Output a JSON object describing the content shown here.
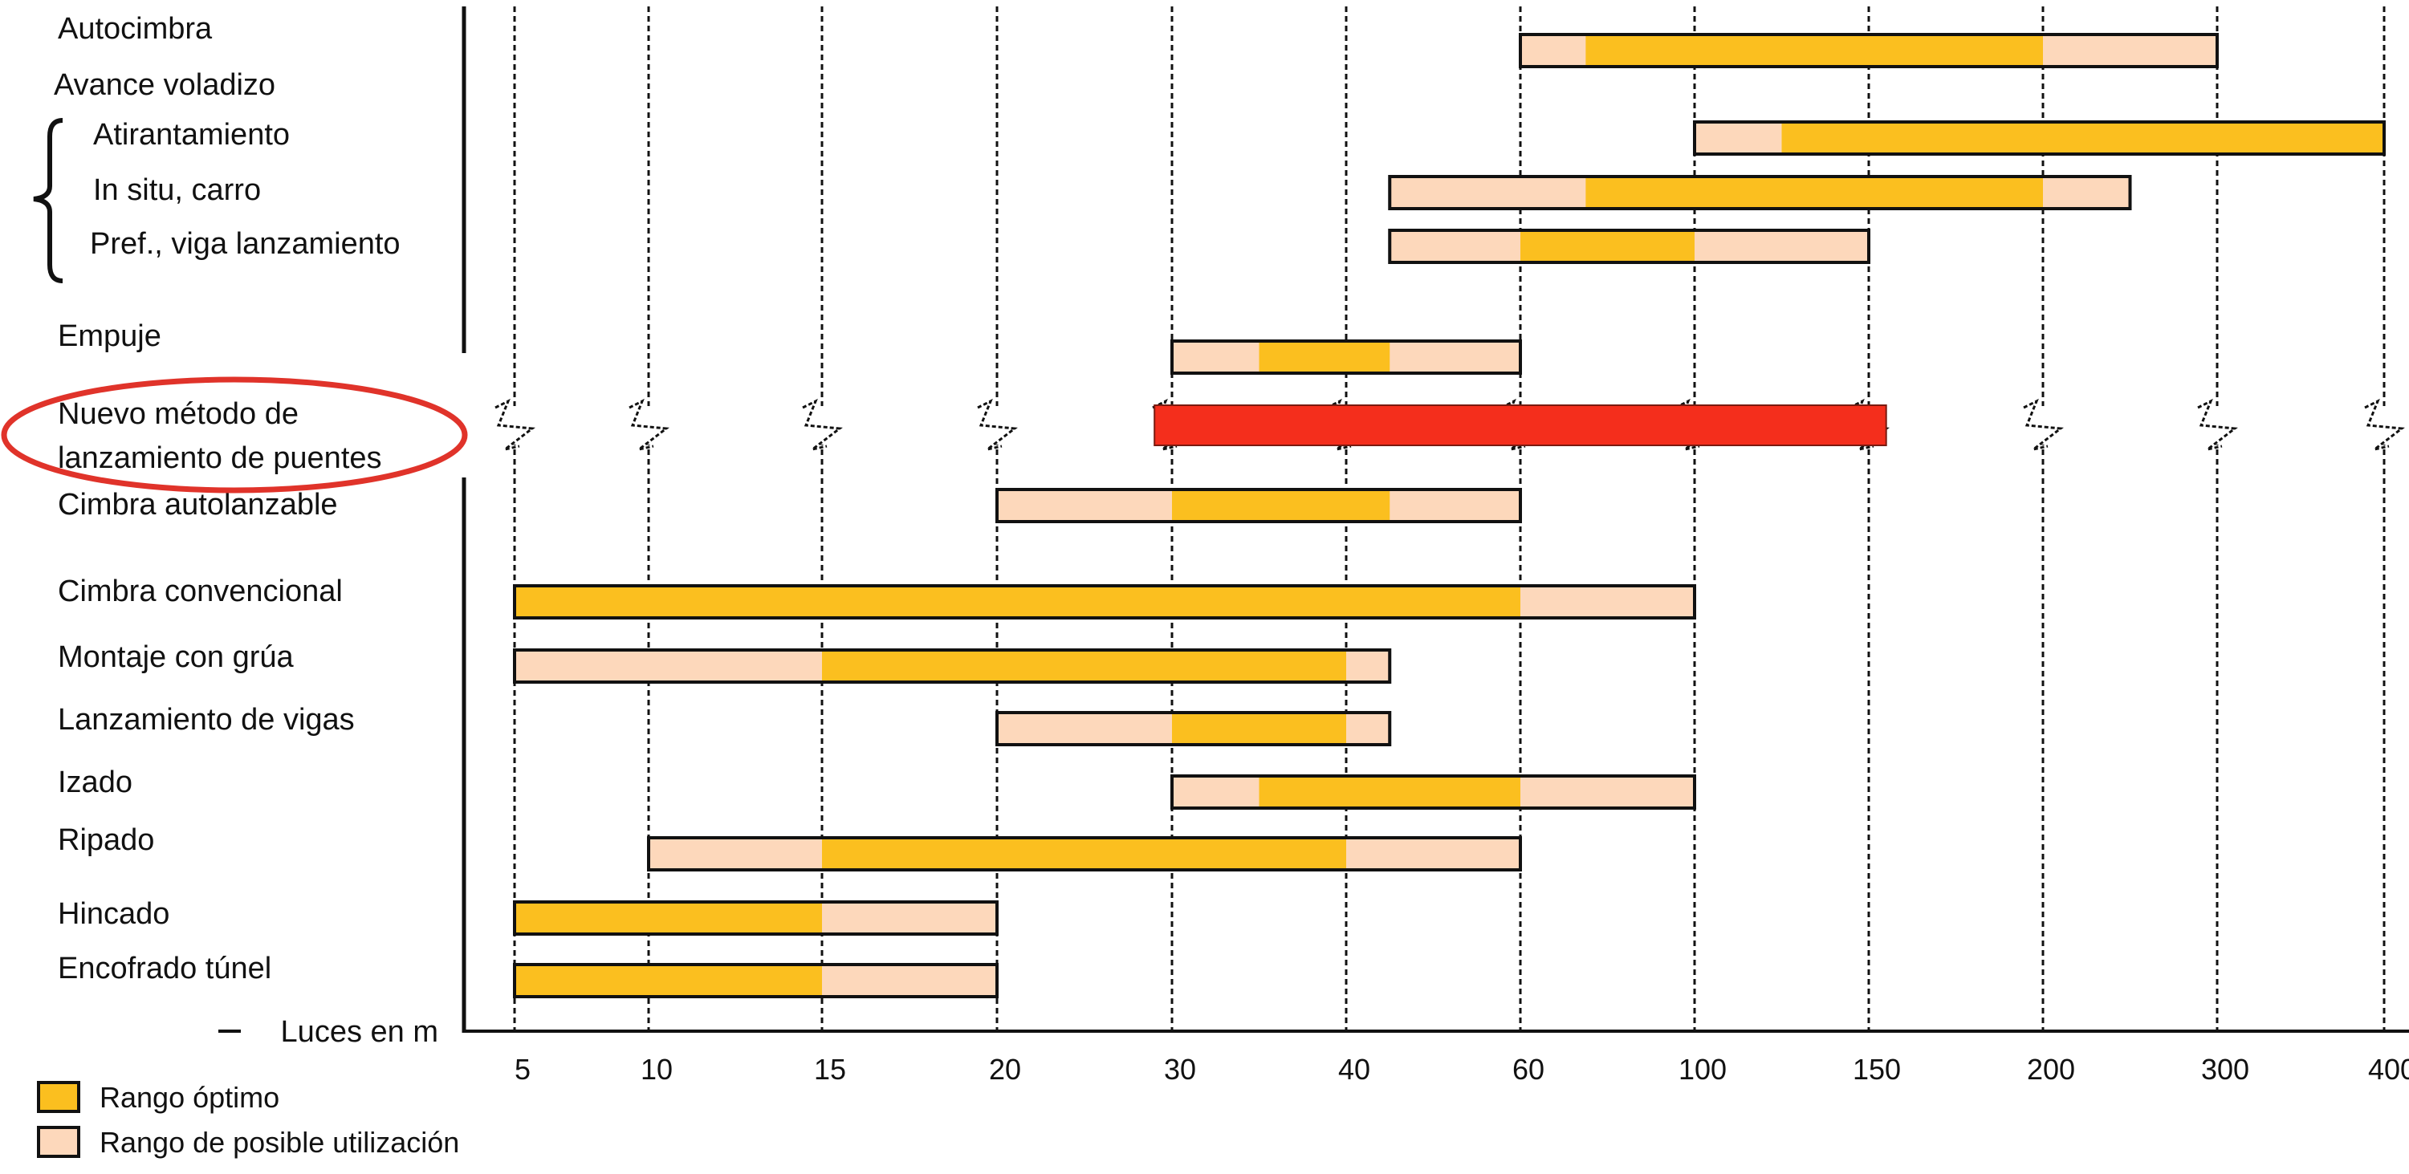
{
  "chart_data": {
    "type": "bar",
    "subtype": "range-gantt",
    "x_axis": {
      "label": "Luces en m",
      "ticks": [
        5,
        10,
        15,
        20,
        30,
        40,
        60,
        100,
        150,
        200,
        300,
        400
      ],
      "scale": "categorical-ticks"
    },
    "grid": "vertical dashed lines at ticks",
    "colors": {
      "optimal": "#FBBF1F",
      "possible": "#FDD8BB",
      "highlight": "#F42E1C",
      "highlight_ring": "#E0332A",
      "border": "#111111"
    },
    "group_label": "Avance voladizo",
    "rows": [
      {
        "label": "Autocimbra",
        "possible": [
          60,
          300
        ],
        "optimal": [
          75,
          200
        ]
      },
      {
        "label": "Atirantamiento",
        "possible": [
          100,
          400
        ],
        "optimal": [
          125,
          400
        ],
        "group": "Avance voladizo"
      },
      {
        "label": "In situ, carro",
        "possible": [
          45,
          250
        ],
        "optimal": [
          75,
          200
        ],
        "group": "Avance voladizo"
      },
      {
        "label": "Pref., viga lanzamiento",
        "possible": [
          45,
          150
        ],
        "optimal": [
          60,
          100
        ],
        "group": "Avance voladizo"
      },
      {
        "label": "Empuje",
        "possible": [
          30,
          60
        ],
        "optimal": [
          35,
          45
        ]
      },
      {
        "label_lines": [
          "Nuevo método de",
          "lanzamiento de puentes"
        ],
        "range": [
          29,
          155
        ],
        "highlight": true
      },
      {
        "label": "Cimbra autolanzable",
        "possible": [
          20,
          60
        ],
        "optimal": [
          30,
          45
        ]
      },
      {
        "label": "Cimbra convencional",
        "possible": [
          5,
          100
        ],
        "optimal": [
          5,
          60
        ]
      },
      {
        "label": "Montaje con grúa",
        "possible": [
          5,
          45
        ],
        "optimal": [
          15,
          40
        ]
      },
      {
        "label": "Lanzamiento de vigas",
        "possible": [
          20,
          45
        ],
        "optimal": [
          30,
          40
        ]
      },
      {
        "label": "Izado",
        "possible": [
          30,
          100
        ],
        "optimal": [
          35,
          60
        ]
      },
      {
        "label": "Ripado",
        "possible": [
          10,
          60
        ],
        "optimal": [
          15,
          40
        ]
      },
      {
        "label": "Hincado",
        "possible": [
          5,
          20
        ],
        "optimal": [
          5,
          15
        ]
      },
      {
        "label": "Encofrado túnel",
        "possible": [
          5,
          20
        ],
        "optimal": [
          5,
          15
        ]
      }
    ],
    "legend": [
      {
        "label": "Rango óptimo",
        "color": "#FBBF1F"
      },
      {
        "label": "Rango de posible utilización",
        "color": "#FDD8BB"
      }
    ],
    "legend_position": "bottom-left"
  }
}
